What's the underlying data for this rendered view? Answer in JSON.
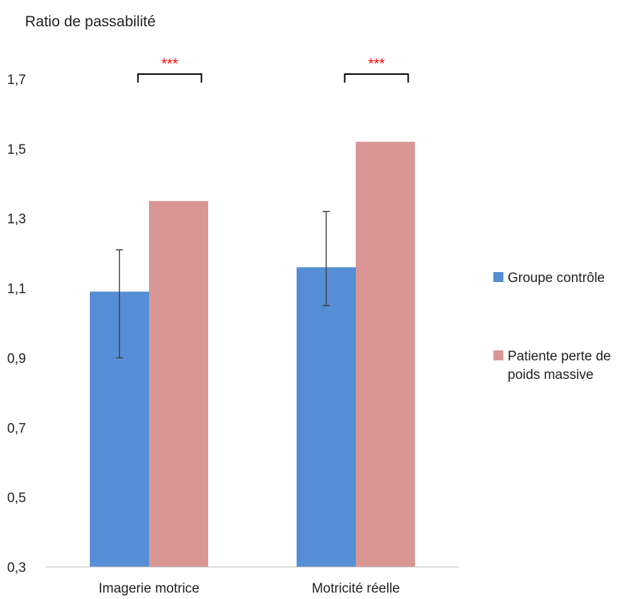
{
  "chart_data": {
    "type": "bar",
    "title": "",
    "ylabel": "Ratio de passabilité",
    "xlabel": "",
    "ylim": [
      0.3,
      1.7
    ],
    "yticks": [
      0.3,
      0.5,
      0.7,
      0.9,
      1.1,
      1.3,
      1.5,
      1.7
    ],
    "ytick_labels": [
      "0,3",
      "0,5",
      "0,7",
      "0,9",
      "1,1",
      "1,3",
      "1,5",
      "1,7"
    ],
    "categories": [
      "Imagerie motrice",
      "Motricité réelle"
    ],
    "series": [
      {
        "name": "Groupe contrôle",
        "color": "#558ed5",
        "values": [
          1.09,
          1.16
        ],
        "error_low": [
          0.9,
          1.05
        ],
        "error_high": [
          1.21,
          1.32
        ]
      },
      {
        "name": "Patiente perte de poids massive",
        "color": "#d99694",
        "values": [
          1.35,
          1.52
        ]
      }
    ],
    "annotations": [
      {
        "category": "Imagerie motrice",
        "text": "***",
        "color": "#ff0000"
      },
      {
        "category": "Motricité réelle",
        "text": "***",
        "color": "#ff0000"
      }
    ],
    "legend": {
      "placement": "right",
      "entries": [
        "Groupe contrôle",
        "Patiente perte de poids massive"
      ]
    },
    "grid": false
  }
}
